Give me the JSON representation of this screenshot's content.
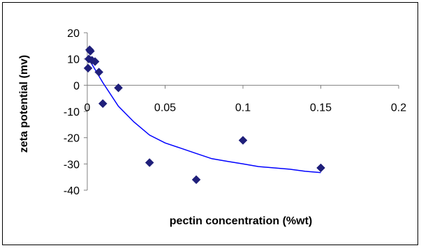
{
  "chart_data": {
    "type": "scatter",
    "title": "",
    "xlabel": "pectin concentration (%wt)",
    "ylabel": "zeta potential (mv)",
    "xlim": [
      0,
      0.2
    ],
    "ylim": [
      -40,
      20
    ],
    "x_ticks": [
      "0",
      "0.05",
      "0.1",
      "0.15",
      "0.2"
    ],
    "y_ticks": [
      "20",
      "10",
      "0",
      "-10",
      "-20",
      "-30",
      "-40"
    ],
    "grid": false,
    "legend": "none",
    "colors": {
      "points": "#1F1F7A",
      "trend": "#0000FF",
      "axes": "#808080"
    },
    "points": [
      {
        "x": 0.0005,
        "y": 6.5
      },
      {
        "x": 0.001,
        "y": 10
      },
      {
        "x": 0.0015,
        "y": 13.5
      },
      {
        "x": 0.002,
        "y": 13
      },
      {
        "x": 0.003,
        "y": 9.5
      },
      {
        "x": 0.005,
        "y": 9
      },
      {
        "x": 0.0075,
        "y": 5
      },
      {
        "x": 0.01,
        "y": -7
      },
      {
        "x": 0.02,
        "y": -1
      },
      {
        "x": 0.04,
        "y": -29.5
      },
      {
        "x": 0.07,
        "y": -36
      },
      {
        "x": 0.1,
        "y": -21
      },
      {
        "x": 0.15,
        "y": -31.5
      }
    ],
    "trendline": {
      "x": [
        0,
        0.01,
        0.02,
        0.03,
        0.04,
        0.05,
        0.06,
        0.07,
        0.08,
        0.09,
        0.1,
        0.11,
        0.12,
        0.13,
        0.14,
        0.15
      ],
      "y": [
        11,
        1,
        -8,
        -14,
        -19,
        -22,
        -24,
        -26,
        -28,
        -29,
        -30,
        -31,
        -31.5,
        -32,
        -32.8,
        -33.3
      ]
    }
  }
}
